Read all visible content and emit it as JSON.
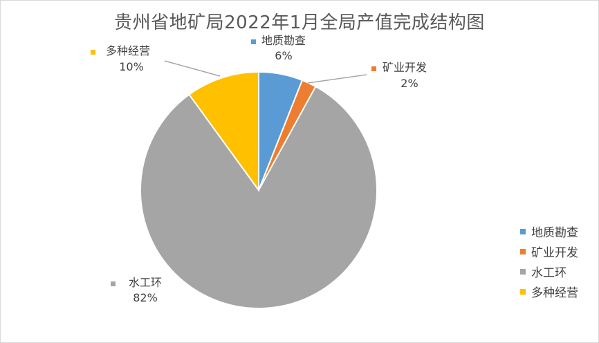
{
  "chart_data": {
    "type": "pie",
    "title": "贵州省地矿局2022年1月全局产值完成结构图",
    "categories": [
      "地质勘查",
      "矿业开发",
      "水工环",
      "多种经营"
    ],
    "values": [
      6,
      2,
      82,
      10
    ],
    "value_labels": [
      "6%",
      "2%",
      "82%",
      "10%"
    ],
    "colors": [
      "#5b9bd5",
      "#ed7d31",
      "#a5a5a5",
      "#ffc000"
    ],
    "legend": "right"
  }
}
